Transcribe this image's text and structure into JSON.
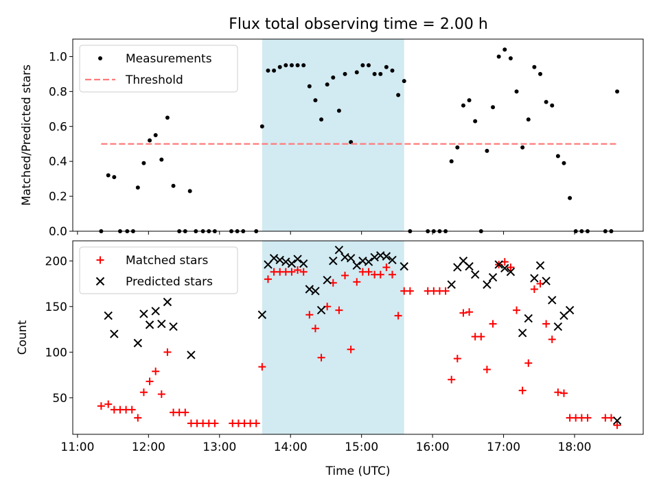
{
  "figure": {
    "title": "Flux total observing time = 2.00 h",
    "xlabel": "Time (UTC)",
    "x_ticks": [
      "11:00",
      "12:00",
      "13:00",
      "14:00",
      "15:00",
      "16:00",
      "17:00",
      "18:00"
    ]
  },
  "chart_data": [
    {
      "type": "scatter",
      "panel": "top",
      "ylabel": "Matched/Predicted stars",
      "ylim": [
        0.0,
        1.1
      ],
      "xlim": [
        "10:56",
        "18:58"
      ],
      "y_ticks": [
        "0.0",
        "0.2",
        "0.4",
        "0.6",
        "0.8",
        "1.0"
      ],
      "highlight_span": {
        "start": "13:36",
        "end": "15:36",
        "color": "#add8e6"
      },
      "legend": {
        "placement": "top-left",
        "entries": [
          "Measurements",
          "Threshold"
        ]
      },
      "series": [
        {
          "name": "Measurements",
          "marker": "dot",
          "color": "#000000",
          "points": [
            [
              "11:20",
              0.0
            ],
            [
              "11:26",
              0.32
            ],
            [
              "11:31",
              0.31
            ],
            [
              "11:36",
              0.0
            ],
            [
              "11:42",
              0.0
            ],
            [
              "11:47",
              0.0
            ],
            [
              "11:51",
              0.25
            ],
            [
              "11:56",
              0.39
            ],
            [
              "12:01",
              0.52
            ],
            [
              "12:06",
              0.55
            ],
            [
              "12:11",
              0.41
            ],
            [
              "12:16",
              0.65
            ],
            [
              "12:21",
              0.26
            ],
            [
              "12:26",
              0.0
            ],
            [
              "12:31",
              0.0
            ],
            [
              "12:35",
              0.23
            ],
            [
              "12:40",
              0.0
            ],
            [
              "12:46",
              0.0
            ],
            [
              "12:51",
              0.0
            ],
            [
              "12:56",
              0.0
            ],
            [
              "13:10",
              0.0
            ],
            [
              "13:15",
              0.0
            ],
            [
              "13:20",
              0.0
            ],
            [
              "13:31",
              0.0
            ],
            [
              "13:36",
              0.6
            ],
            [
              "13:41",
              0.92
            ],
            [
              "13:46",
              0.92
            ],
            [
              "13:51",
              0.94
            ],
            [
              "13:56",
              0.95
            ],
            [
              "14:01",
              0.95
            ],
            [
              "14:06",
              0.95
            ],
            [
              "14:11",
              0.95
            ],
            [
              "14:16",
              0.83
            ],
            [
              "14:21",
              0.75
            ],
            [
              "14:26",
              0.64
            ],
            [
              "14:31",
              0.84
            ],
            [
              "14:36",
              0.88
            ],
            [
              "14:41",
              0.69
            ],
            [
              "14:46",
              0.9
            ],
            [
              "14:51",
              0.51
            ],
            [
              "14:56",
              0.91
            ],
            [
              "15:01",
              0.95
            ],
            [
              "15:06",
              0.95
            ],
            [
              "15:11",
              0.9
            ],
            [
              "15:16",
              0.9
            ],
            [
              "15:21",
              0.94
            ],
            [
              "15:26",
              0.92
            ],
            [
              "15:31",
              0.78
            ],
            [
              "15:36",
              0.86
            ],
            [
              "15:41",
              0.0
            ],
            [
              "15:56",
              0.0
            ],
            [
              "16:01",
              0.0
            ],
            [
              "16:06",
              0.0
            ],
            [
              "16:11",
              0.0
            ],
            [
              "16:16",
              0.4
            ],
            [
              "16:21",
              0.48
            ],
            [
              "16:26",
              0.72
            ],
            [
              "16:31",
              0.75
            ],
            [
              "16:36",
              0.63
            ],
            [
              "16:41",
              0.0
            ],
            [
              "16:46",
              0.46
            ],
            [
              "16:51",
              0.71
            ],
            [
              "16:56",
              1.0
            ],
            [
              "17:01",
              1.04
            ],
            [
              "17:06",
              0.99
            ],
            [
              "17:11",
              0.8
            ],
            [
              "17:16",
              0.48
            ],
            [
              "17:21",
              0.64
            ],
            [
              "17:26",
              0.94
            ],
            [
              "17:31",
              0.9
            ],
            [
              "17:36",
              0.74
            ],
            [
              "17:41",
              0.72
            ],
            [
              "17:46",
              0.43
            ],
            [
              "17:51",
              0.39
            ],
            [
              "17:56",
              0.19
            ],
            [
              "18:01",
              0.0
            ],
            [
              "18:06",
              0.0
            ],
            [
              "18:11",
              0.0
            ],
            [
              "18:26",
              0.0
            ],
            [
              "18:31",
              0.0
            ],
            [
              "18:36",
              0.8
            ]
          ]
        },
        {
          "name": "Threshold",
          "marker": "dashed-line",
          "color": "#ff7b7b",
          "points": [
            [
              "11:20",
              0.5
            ],
            [
              "18:36",
              0.5
            ]
          ]
        }
      ]
    },
    {
      "type": "scatter",
      "panel": "bottom",
      "ylabel": "Count",
      "ylim": [
        10,
        222
      ],
      "xlim": [
        "10:56",
        "18:58"
      ],
      "y_ticks": [
        "50",
        "100",
        "150",
        "200"
      ],
      "highlight_span": {
        "start": "13:36",
        "end": "15:36",
        "color": "#add8e6"
      },
      "legend": {
        "placement": "top-left",
        "entries": [
          "Matched stars",
          "Predicted stars"
        ]
      },
      "series": [
        {
          "name": "Matched stars",
          "marker": "plus",
          "color": "#ff0000",
          "points": [
            [
              "11:20",
              41
            ],
            [
              "11:26",
              43
            ],
            [
              "11:31",
              37
            ],
            [
              "11:36",
              37
            ],
            [
              "11:41",
              37
            ],
            [
              "11:46",
              37
            ],
            [
              "11:51",
              28
            ],
            [
              "11:56",
              56
            ],
            [
              "12:01",
              68
            ],
            [
              "12:06",
              79
            ],
            [
              "12:11",
              54
            ],
            [
              "12:16",
              100
            ],
            [
              "12:21",
              34
            ],
            [
              "12:26",
              34
            ],
            [
              "12:31",
              34
            ],
            [
              "12:36",
              22
            ],
            [
              "12:41",
              22
            ],
            [
              "12:46",
              22
            ],
            [
              "12:51",
              22
            ],
            [
              "12:56",
              22
            ],
            [
              "13:11",
              22
            ],
            [
              "13:16",
              22
            ],
            [
              "13:21",
              22
            ],
            [
              "13:26",
              22
            ],
            [
              "13:31",
              22
            ],
            [
              "13:36",
              84
            ],
            [
              "13:41",
              180
            ],
            [
              "13:46",
              188
            ],
            [
              "13:51",
              188
            ],
            [
              "13:56",
              188
            ],
            [
              "14:01",
              188
            ],
            [
              "14:06",
              190
            ],
            [
              "14:11",
              188
            ],
            [
              "14:16",
              141
            ],
            [
              "14:21",
              126
            ],
            [
              "14:26",
              94
            ],
            [
              "14:31",
              150
            ],
            [
              "14:36",
              176
            ],
            [
              "14:41",
              146
            ],
            [
              "14:46",
              184
            ],
            [
              "14:51",
              103
            ],
            [
              "14:56",
              177
            ],
            [
              "15:01",
              188
            ],
            [
              "15:06",
              188
            ],
            [
              "15:11",
              185
            ],
            [
              "15:16",
              185
            ],
            [
              "15:21",
              193
            ],
            [
              "15:26",
              185
            ],
            [
              "15:31",
              140
            ],
            [
              "15:36",
              167
            ],
            [
              "15:41",
              167
            ],
            [
              "15:56",
              167
            ],
            [
              "16:01",
              167
            ],
            [
              "16:06",
              167
            ],
            [
              "16:11",
              167
            ],
            [
              "16:16",
              70
            ],
            [
              "16:21",
              93
            ],
            [
              "16:26",
              143
            ],
            [
              "16:31",
              144
            ],
            [
              "16:36",
              117
            ],
            [
              "16:41",
              117
            ],
            [
              "16:46",
              81
            ],
            [
              "16:51",
              131
            ],
            [
              "16:56",
              196
            ],
            [
              "17:01",
              199
            ],
            [
              "17:06",
              193
            ],
            [
              "17:11",
              146
            ],
            [
              "17:16",
              58
            ],
            [
              "17:21",
              88
            ],
            [
              "17:26",
              169
            ],
            [
              "17:31",
              175
            ],
            [
              "17:36",
              131
            ],
            [
              "17:41",
              114
            ],
            [
              "17:46",
              56
            ],
            [
              "17:51",
              55
            ],
            [
              "17:56",
              28
            ],
            [
              "18:01",
              28
            ],
            [
              "18:06",
              28
            ],
            [
              "18:11",
              28
            ],
            [
              "18:26",
              28
            ],
            [
              "18:31",
              28
            ],
            [
              "18:36",
              20
            ]
          ]
        },
        {
          "name": "Predicted stars",
          "marker": "x",
          "color": "#000000",
          "points": [
            [
              "11:26",
              140
            ],
            [
              "11:31",
              120
            ],
            [
              "11:51",
              110
            ],
            [
              "11:56",
              142
            ],
            [
              "12:01",
              130
            ],
            [
              "12:06",
              145
            ],
            [
              "12:11",
              131
            ],
            [
              "12:16",
              155
            ],
            [
              "12:21",
              128
            ],
            [
              "12:36",
              97
            ],
            [
              "13:36",
              141
            ],
            [
              "13:41",
              196
            ],
            [
              "13:46",
              203
            ],
            [
              "13:51",
              201
            ],
            [
              "13:56",
              199
            ],
            [
              "14:01",
              197
            ],
            [
              "14:06",
              202
            ],
            [
              "14:11",
              197
            ],
            [
              "14:16",
              169
            ],
            [
              "14:21",
              167
            ],
            [
              "14:26",
              146
            ],
            [
              "14:31",
              179
            ],
            [
              "14:36",
              200
            ],
            [
              "14:41",
              212
            ],
            [
              "14:46",
              204
            ],
            [
              "14:51",
              203
            ],
            [
              "14:56",
              195
            ],
            [
              "15:01",
              200
            ],
            [
              "15:06",
              199
            ],
            [
              "15:11",
              204
            ],
            [
              "15:16",
              206
            ],
            [
              "15:21",
              205
            ],
            [
              "15:26",
              201
            ],
            [
              "15:36",
              194
            ],
            [
              "16:16",
              174
            ],
            [
              "16:21",
              193
            ],
            [
              "16:26",
              200
            ],
            [
              "16:31",
              194
            ],
            [
              "16:36",
              185
            ],
            [
              "16:46",
              174
            ],
            [
              "16:51",
              182
            ],
            [
              "16:56",
              196
            ],
            [
              "17:01",
              192
            ],
            [
              "17:06",
              188
            ],
            [
              "17:16",
              121
            ],
            [
              "17:21",
              137
            ],
            [
              "17:26",
              181
            ],
            [
              "17:31",
              195
            ],
            [
              "17:36",
              178
            ],
            [
              "17:41",
              157
            ],
            [
              "17:46",
              128
            ],
            [
              "17:51",
              140
            ],
            [
              "17:56",
              146
            ],
            [
              "18:36",
              25
            ]
          ]
        }
      ]
    }
  ]
}
